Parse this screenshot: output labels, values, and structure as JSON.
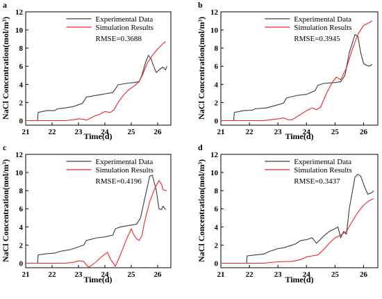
{
  "figure": {
    "xlabel": "Time(d)",
    "ylabel": "NaCl Concentration(mol/m³)"
  },
  "colors": {
    "experimental": "#3a3a3a",
    "simulation": "#e8262a"
  },
  "chart_data": [
    {
      "type": "line",
      "panel": "a",
      "xlim": [
        21,
        26.5
      ],
      "ylim": [
        -0.5,
        12
      ],
      "xticks": [
        "21",
        "22",
        "23",
        "24",
        "25",
        "26"
      ],
      "yticks": [
        "0",
        "2",
        "4",
        "6",
        "8",
        "10",
        "12"
      ],
      "legend_position": "top-right",
      "grid": false,
      "annotation": "RMSE=0.3688",
      "series": [
        {
          "name": "Experimental Data",
          "color": "#3a3a3a",
          "points": [
            [
              21.45,
              0
            ],
            [
              21.47,
              0.9
            ],
            [
              21.8,
              1.1
            ],
            [
              22.1,
              1.1
            ],
            [
              22.2,
              1.3
            ],
            [
              22.5,
              1.4
            ],
            [
              22.8,
              1.55
            ],
            [
              23.0,
              1.75
            ],
            [
              23.15,
              1.9
            ],
            [
              23.3,
              2.6
            ],
            [
              23.6,
              2.75
            ],
            [
              23.9,
              2.9
            ],
            [
              24.0,
              2.95
            ],
            [
              24.3,
              3.1
            ],
            [
              24.4,
              3.5
            ],
            [
              24.5,
              3.95
            ],
            [
              24.8,
              4.1
            ],
            [
              25.1,
              4.2
            ],
            [
              25.3,
              4.3
            ],
            [
              25.4,
              5.0
            ],
            [
              25.55,
              6.5
            ],
            [
              25.65,
              7.2
            ],
            [
              25.75,
              6.8
            ],
            [
              25.85,
              6.0
            ],
            [
              25.95,
              5.3
            ],
            [
              26.05,
              5.6
            ],
            [
              26.2,
              5.9
            ],
            [
              26.3,
              5.6
            ],
            [
              26.35,
              6.0
            ]
          ]
        },
        {
          "name": "Simulation Results",
          "color": "#e8262a",
          "points": [
            [
              21.0,
              0
            ],
            [
              21.5,
              0
            ],
            [
              22.0,
              0
            ],
            [
              22.5,
              0
            ],
            [
              22.8,
              0.1
            ],
            [
              23.0,
              0.2
            ],
            [
              23.2,
              0.15
            ],
            [
              23.3,
              0.05
            ],
            [
              23.4,
              0.2
            ],
            [
              23.6,
              0.5
            ],
            [
              23.8,
              0.7
            ],
            [
              24.0,
              1.0
            ],
            [
              24.2,
              0.9
            ],
            [
              24.35,
              1.2
            ],
            [
              24.5,
              2.0
            ],
            [
              24.7,
              2.8
            ],
            [
              24.9,
              3.4
            ],
            [
              25.1,
              3.8
            ],
            [
              25.3,
              4.3
            ],
            [
              25.45,
              5.2
            ],
            [
              25.6,
              6.3
            ],
            [
              25.8,
              7.2
            ],
            [
              26.0,
              7.9
            ],
            [
              26.2,
              8.5
            ],
            [
              26.3,
              8.7
            ]
          ]
        }
      ]
    },
    {
      "type": "line",
      "panel": "b",
      "xlim": [
        21,
        26.5
      ],
      "ylim": [
        -0.5,
        12
      ],
      "xticks": [
        "21",
        "22",
        "23",
        "24",
        "25",
        "26"
      ],
      "yticks": [
        "0",
        "2",
        "4",
        "6",
        "8",
        "10",
        "12"
      ],
      "legend_position": "top-right",
      "grid": false,
      "annotation": "RMSE=0.3945",
      "series": [
        {
          "name": "Experimental Data",
          "color": "#3a3a3a",
          "points": [
            [
              21.45,
              0
            ],
            [
              21.47,
              0.9
            ],
            [
              21.8,
              1.1
            ],
            [
              22.1,
              1.15
            ],
            [
              22.2,
              1.3
            ],
            [
              22.6,
              1.4
            ],
            [
              23.0,
              1.75
            ],
            [
              23.2,
              1.95
            ],
            [
              23.3,
              2.5
            ],
            [
              23.7,
              2.8
            ],
            [
              24.0,
              2.9
            ],
            [
              24.3,
              3.3
            ],
            [
              24.4,
              3.9
            ],
            [
              24.6,
              4.1
            ],
            [
              25.0,
              4.2
            ],
            [
              25.2,
              4.3
            ],
            [
              25.35,
              5.0
            ],
            [
              25.5,
              7.5
            ],
            [
              25.7,
              9.5
            ],
            [
              25.8,
              9.3
            ],
            [
              25.9,
              7.5
            ],
            [
              26.0,
              6.3
            ],
            [
              26.1,
              6.1
            ],
            [
              26.2,
              6.0
            ],
            [
              26.3,
              6.2
            ]
          ]
        },
        {
          "name": "Simulation Results",
          "color": "#e8262a",
          "points": [
            [
              21.0,
              0
            ],
            [
              21.5,
              0
            ],
            [
              22.0,
              0
            ],
            [
              22.5,
              0
            ],
            [
              23.0,
              0.2
            ],
            [
              23.2,
              0.3
            ],
            [
              23.35,
              0.1
            ],
            [
              23.5,
              0.1
            ],
            [
              23.7,
              0.5
            ],
            [
              24.0,
              1.1
            ],
            [
              24.2,
              1.4
            ],
            [
              24.35,
              1.2
            ],
            [
              24.5,
              1.5
            ],
            [
              24.7,
              3.0
            ],
            [
              24.9,
              4.2
            ],
            [
              25.05,
              4.8
            ],
            [
              25.2,
              4.5
            ],
            [
              25.4,
              5.8
            ],
            [
              25.6,
              7.8
            ],
            [
              25.8,
              9.5
            ],
            [
              26.0,
              10.5
            ],
            [
              26.2,
              10.8
            ],
            [
              26.3,
              11.0
            ]
          ]
        }
      ]
    },
    {
      "type": "line",
      "panel": "c",
      "xlim": [
        21,
        26.5
      ],
      "ylim": [
        -0.5,
        12
      ],
      "xticks": [
        "21",
        "22",
        "23",
        "24",
        "25",
        "26"
      ],
      "yticks": [
        "0",
        "2",
        "4",
        "6",
        "8",
        "10",
        "12"
      ],
      "legend_position": "top-right",
      "grid": false,
      "annotation": "RMSE=0.4196",
      "series": [
        {
          "name": "Experimental Data",
          "color": "#3a3a3a",
          "points": [
            [
              21.45,
              0
            ],
            [
              21.47,
              0.9
            ],
            [
              21.8,
              1.05
            ],
            [
              22.1,
              1.1
            ],
            [
              22.3,
              1.3
            ],
            [
              22.7,
              1.5
            ],
            [
              23.0,
              1.8
            ],
            [
              23.2,
              2.0
            ],
            [
              23.3,
              2.5
            ],
            [
              23.7,
              2.8
            ],
            [
              24.0,
              2.9
            ],
            [
              24.3,
              3.1
            ],
            [
              24.4,
              3.8
            ],
            [
              24.6,
              4.0
            ],
            [
              25.0,
              4.2
            ],
            [
              25.2,
              4.3
            ],
            [
              25.35,
              5.0
            ],
            [
              25.5,
              7.0
            ],
            [
              25.7,
              9.6
            ],
            [
              25.8,
              9.7
            ],
            [
              25.95,
              8.0
            ],
            [
              26.05,
              6.0
            ],
            [
              26.15,
              5.9
            ],
            [
              26.2,
              6.3
            ],
            [
              26.3,
              5.9
            ]
          ]
        },
        {
          "name": "Simulation Results",
          "color": "#e8262a",
          "points": [
            [
              21.0,
              0
            ],
            [
              21.5,
              0
            ],
            [
              22.0,
              0
            ],
            [
              22.5,
              0
            ],
            [
              22.8,
              0.1
            ],
            [
              23.0,
              0.25
            ],
            [
              23.2,
              0.2
            ],
            [
              23.3,
              -0.2
            ],
            [
              23.4,
              -0.45
            ],
            [
              23.6,
              0.0
            ],
            [
              23.8,
              0.5
            ],
            [
              24.0,
              1.0
            ],
            [
              24.1,
              1.2
            ],
            [
              24.2,
              0.5
            ],
            [
              24.4,
              -0.35
            ],
            [
              24.6,
              1.0
            ],
            [
              24.8,
              2.5
            ],
            [
              25.0,
              3.8
            ],
            [
              25.1,
              3.1
            ],
            [
              25.2,
              2.7
            ],
            [
              25.3,
              2.5
            ],
            [
              25.4,
              3.0
            ],
            [
              25.5,
              4.5
            ],
            [
              25.7,
              6.8
            ],
            [
              25.9,
              8.3
            ],
            [
              26.05,
              9.1
            ],
            [
              26.15,
              8.7
            ],
            [
              26.2,
              8.1
            ],
            [
              26.35,
              8.0
            ]
          ]
        }
      ]
    },
    {
      "type": "line",
      "panel": "d",
      "xlim": [
        21,
        26.5
      ],
      "ylim": [
        -0.5,
        12
      ],
      "xticks": [
        "21",
        "22",
        "23",
        "24",
        "25",
        "26"
      ],
      "yticks": [
        "0",
        "2",
        "4",
        "6",
        "8",
        "10",
        "12"
      ],
      "legend_position": "top-right",
      "grid": false,
      "annotation": "RMSE=0.3437",
      "series": [
        {
          "name": "Experimental Data",
          "color": "#3a3a3a",
          "points": [
            [
              21.9,
              0
            ],
            [
              21.92,
              0.8
            ],
            [
              22.2,
              0.9
            ],
            [
              22.5,
              1.0
            ],
            [
              22.7,
              1.3
            ],
            [
              23.0,
              1.6
            ],
            [
              23.2,
              1.7
            ],
            [
              23.4,
              1.9
            ],
            [
              23.6,
              2.1
            ],
            [
              23.8,
              2.5
            ],
            [
              24.0,
              2.6
            ],
            [
              24.2,
              2.8
            ],
            [
              24.35,
              2.2
            ],
            [
              24.45,
              2.5
            ],
            [
              24.6,
              3.0
            ],
            [
              24.8,
              3.5
            ],
            [
              25.0,
              3.8
            ],
            [
              25.1,
              4.0
            ],
            [
              25.2,
              2.8
            ],
            [
              25.3,
              3.5
            ],
            [
              25.4,
              3.2
            ],
            [
              25.5,
              6.0
            ],
            [
              25.7,
              9.5
            ],
            [
              25.8,
              9.8
            ],
            [
              25.9,
              9.6
            ],
            [
              26.05,
              8.3
            ],
            [
              26.15,
              7.6
            ],
            [
              26.3,
              7.8
            ],
            [
              26.35,
              8.0
            ]
          ]
        },
        {
          "name": "Simulation Results",
          "color": "#e8262a",
          "points": [
            [
              21.0,
              0
            ],
            [
              21.5,
              0
            ],
            [
              22.0,
              0
            ],
            [
              22.5,
              0
            ],
            [
              23.0,
              0.15
            ],
            [
              23.5,
              0.2
            ],
            [
              23.8,
              0.4
            ],
            [
              24.0,
              0.7
            ],
            [
              24.2,
              0.8
            ],
            [
              24.4,
              0.9
            ],
            [
              24.6,
              1.5
            ],
            [
              24.8,
              2.2
            ],
            [
              25.0,
              2.8
            ],
            [
              25.2,
              3.1
            ],
            [
              25.4,
              3.5
            ],
            [
              25.6,
              4.6
            ],
            [
              25.8,
              5.6
            ],
            [
              26.0,
              6.4
            ],
            [
              26.2,
              6.9
            ],
            [
              26.35,
              7.1
            ]
          ]
        }
      ]
    }
  ]
}
